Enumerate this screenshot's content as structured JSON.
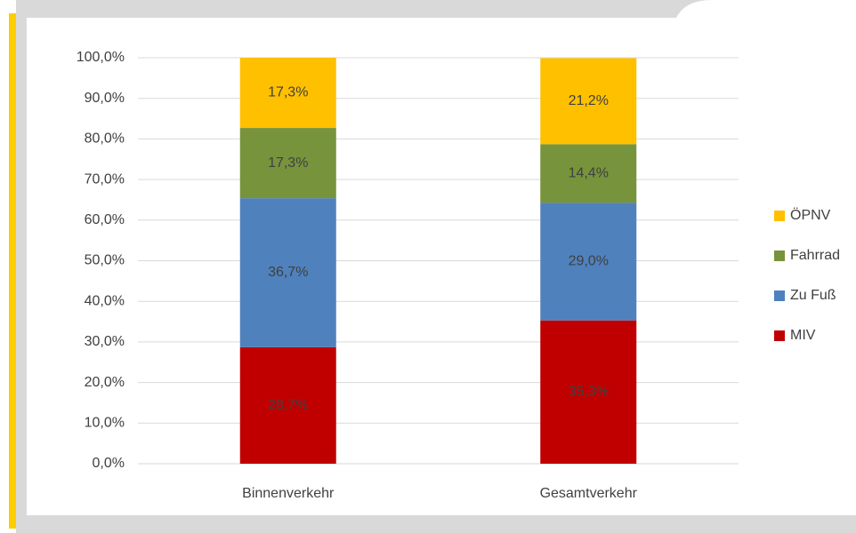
{
  "chart_data": {
    "type": "stacked_bar",
    "categories": [
      "Binnenverkehr",
      "Gesamtverkehr"
    ],
    "series": [
      {
        "name": "MIV",
        "color": "#c00000",
        "values": [
          28.7,
          35.3
        ],
        "value_labels": [
          "28,7%",
          "35,3%"
        ]
      },
      {
        "name": "Zu Fuß",
        "color": "#4f81bd",
        "values": [
          36.7,
          29.0
        ],
        "value_labels": [
          "36,7%",
          "29,0%"
        ]
      },
      {
        "name": "Fahrrad",
        "color": "#77933c",
        "values": [
          17.3,
          14.4
        ],
        "value_labels": [
          "17,3%",
          "14,4%"
        ]
      },
      {
        "name": "ÖPNV",
        "color": "#ffc000",
        "values": [
          17.3,
          21.2
        ],
        "value_labels": [
          "17,3%",
          "21,2%"
        ]
      }
    ],
    "ylim": [
      0,
      100
    ],
    "yticks": [
      {
        "value": 0,
        "label": "0,0%"
      },
      {
        "value": 10,
        "label": "10,0%"
      },
      {
        "value": 20,
        "label": "20,0%"
      },
      {
        "value": 30,
        "label": "30,0%"
      },
      {
        "value": 40,
        "label": "40,0%"
      },
      {
        "value": 50,
        "label": "50,0%"
      },
      {
        "value": 60,
        "label": "60,0%"
      },
      {
        "value": 70,
        "label": "70,0%"
      },
      {
        "value": 80,
        "label": "80,0%"
      },
      {
        "value": 90,
        "label": "90,0%"
      },
      {
        "value": 100,
        "label": "100,0%"
      }
    ],
    "grid": true,
    "legend": "right"
  }
}
